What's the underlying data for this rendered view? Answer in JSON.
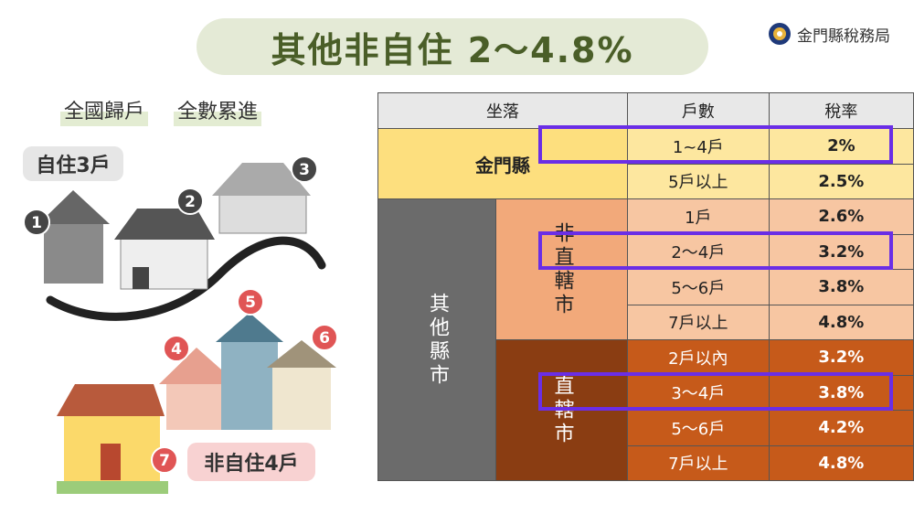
{
  "header": {
    "title": "其他非自住 2～4.8%",
    "organization": "金門縣稅務局"
  },
  "illustration": {
    "subtitle": [
      "全國歸戶",
      "全數累進"
    ],
    "owner_occupied_label": "自住3戶",
    "non_owner_occupied_label": "非自住4戶",
    "badges": [
      1,
      2,
      3,
      4,
      5,
      6,
      7
    ]
  },
  "table": {
    "columns": [
      "坐落",
      "戶數",
      "稅率"
    ],
    "groups": [
      {
        "location": "金門縣",
        "rows": [
          [
            "1~4戶",
            "2%"
          ],
          [
            "5戶以上",
            "2.5%"
          ]
        ]
      },
      {
        "location": "其他縣市",
        "subgroups": [
          {
            "name": "非直轄市",
            "rows": [
              [
                "1戶",
                "2.6%"
              ],
              [
                "2～4戶",
                "3.2%"
              ],
              [
                "5～6戶",
                "3.8%"
              ],
              [
                "7戶以上",
                "4.8%"
              ]
            ]
          },
          {
            "name": "直轄市",
            "rows": [
              [
                "2戶以內",
                "3.2%"
              ],
              [
                "3～4戶",
                "3.8%"
              ],
              [
                "5～6戶",
                "4.2%"
              ],
              [
                "7戶以上",
                "4.8%"
              ]
            ]
          }
        ]
      }
    ]
  }
}
